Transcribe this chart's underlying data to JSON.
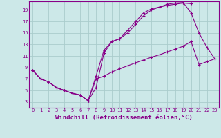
{
  "background_color": "#cce8e8",
  "grid_color": "#aacccc",
  "line_color": "#880088",
  "marker": "+",
  "xlabel": "Windchill (Refroidissement éolien,°C)",
  "xlabel_fontsize": 6.5,
  "xlim": [
    -0.5,
    23.5
  ],
  "ylim": [
    2,
    20.5
  ],
  "yticks": [
    3,
    5,
    7,
    9,
    11,
    13,
    15,
    17,
    19
  ],
  "xticks": [
    0,
    1,
    2,
    3,
    4,
    5,
    6,
    7,
    8,
    9,
    10,
    11,
    12,
    13,
    14,
    15,
    16,
    17,
    18,
    19,
    20,
    21,
    22,
    23
  ],
  "line1_x": [
    0,
    1,
    2,
    3,
    4,
    5,
    6,
    7,
    8,
    9,
    10,
    11,
    12,
    13,
    14,
    15,
    16,
    17,
    18,
    19,
    20
  ],
  "line1_y": [
    8.5,
    7.0,
    6.5,
    5.5,
    5.0,
    4.5,
    4.2,
    3.2,
    5.5,
    11.5,
    13.5,
    14.0,
    15.5,
    17.0,
    18.5,
    19.2,
    19.5,
    19.8,
    20.0,
    20.2,
    20.1
  ],
  "line2_x": [
    0,
    1,
    2,
    3,
    4,
    5,
    6,
    7,
    8,
    9,
    10,
    11,
    12,
    13,
    14,
    15,
    16,
    17,
    18,
    19,
    20,
    21,
    22,
    23
  ],
  "line2_y": [
    8.5,
    7.0,
    6.5,
    5.5,
    5.0,
    4.5,
    4.2,
    3.2,
    7.5,
    12.0,
    13.5,
    14.0,
    15.0,
    16.5,
    18.0,
    19.0,
    19.5,
    20.0,
    20.2,
    20.3,
    18.5,
    15.0,
    12.5,
    10.5
  ],
  "line3_x": [
    0,
    1,
    2,
    3,
    4,
    5,
    6,
    7,
    8,
    9,
    10,
    11,
    12,
    13,
    14,
    15,
    16,
    17,
    18,
    19,
    20,
    21,
    22,
    23
  ],
  "line3_y": [
    8.5,
    7.0,
    6.5,
    5.5,
    5.0,
    4.5,
    4.2,
    3.2,
    7.0,
    7.5,
    8.2,
    8.8,
    9.3,
    9.8,
    10.3,
    10.8,
    11.2,
    11.7,
    12.2,
    12.7,
    13.5,
    9.5,
    10.0,
    10.5
  ]
}
